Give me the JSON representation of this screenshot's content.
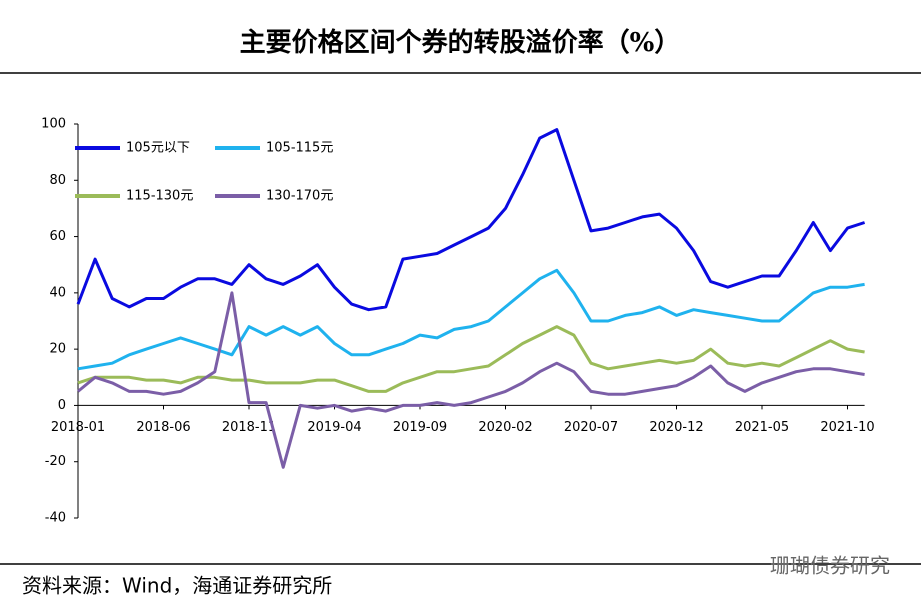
{
  "chart_data": {
    "type": "line",
    "title": "主要价格区间个券的转股溢价率（%）",
    "source": "资料来源：Wind，海通证券研究所",
    "watermark": "珊瑚债券研究",
    "categories": [
      "2018-01",
      null,
      null,
      null,
      null,
      "2018-06",
      null,
      null,
      null,
      null,
      "2018-11",
      null,
      null,
      null,
      null,
      "2019-04",
      null,
      null,
      null,
      null,
      "2019-09",
      null,
      null,
      null,
      null,
      "2020-02",
      null,
      null,
      null,
      null,
      "2020-07",
      null,
      null,
      null,
      null,
      "2020-12",
      null,
      null,
      null,
      null,
      "2021-05",
      null,
      null,
      null,
      null,
      "2021-10",
      null
    ],
    "series": [
      {
        "name": "105元以下",
        "color": "#0a0ae0",
        "values": [
          36,
          52,
          38,
          35,
          38,
          38,
          42,
          45,
          45,
          43,
          50,
          45,
          43,
          46,
          50,
          42,
          36,
          34,
          35,
          52,
          53,
          54,
          57,
          60,
          63,
          70,
          82,
          95,
          98,
          80,
          62,
          63,
          65,
          67,
          68,
          63,
          55,
          44,
          42,
          44,
          46,
          46,
          55,
          65,
          55,
          63,
          65
        ]
      },
      {
        "name": "105-115元",
        "color": "#1fb2ee",
        "values": [
          13,
          14,
          15,
          18,
          20,
          22,
          24,
          22,
          20,
          18,
          28,
          25,
          28,
          25,
          28,
          22,
          18,
          18,
          20,
          22,
          25,
          24,
          27,
          28,
          30,
          35,
          40,
          45,
          48,
          40,
          30,
          30,
          32,
          33,
          35,
          32,
          34,
          33,
          32,
          31,
          30,
          30,
          35,
          40,
          42,
          42,
          43
        ]
      },
      {
        "name": "115-130元",
        "color": "#9bbb59",
        "values": [
          8,
          10,
          10,
          10,
          9,
          9,
          8,
          10,
          10,
          9,
          9,
          8,
          8,
          8,
          9,
          9,
          7,
          5,
          5,
          8,
          10,
          12,
          12,
          13,
          14,
          18,
          22,
          25,
          28,
          25,
          15,
          13,
          14,
          15,
          16,
          15,
          16,
          20,
          15,
          14,
          15,
          14,
          17,
          20,
          23,
          20,
          19
        ]
      },
      {
        "name": "130-170元",
        "color": "#7b5ea7",
        "values": [
          5,
          10,
          8,
          5,
          5,
          4,
          5,
          8,
          12,
          40,
          1,
          1,
          -22,
          0,
          -1,
          0,
          -2,
          -1,
          -2,
          0,
          0,
          1,
          0,
          1,
          3,
          5,
          8,
          12,
          15,
          12,
          5,
          4,
          4,
          5,
          6,
          7,
          10,
          14,
          8,
          5,
          8,
          10,
          12,
          13,
          13,
          12,
          11
        ]
      }
    ],
    "ylim": [
      -40,
      100
    ],
    "yticks": [
      -40,
      -20,
      0,
      20,
      40,
      60,
      80,
      100
    ]
  }
}
